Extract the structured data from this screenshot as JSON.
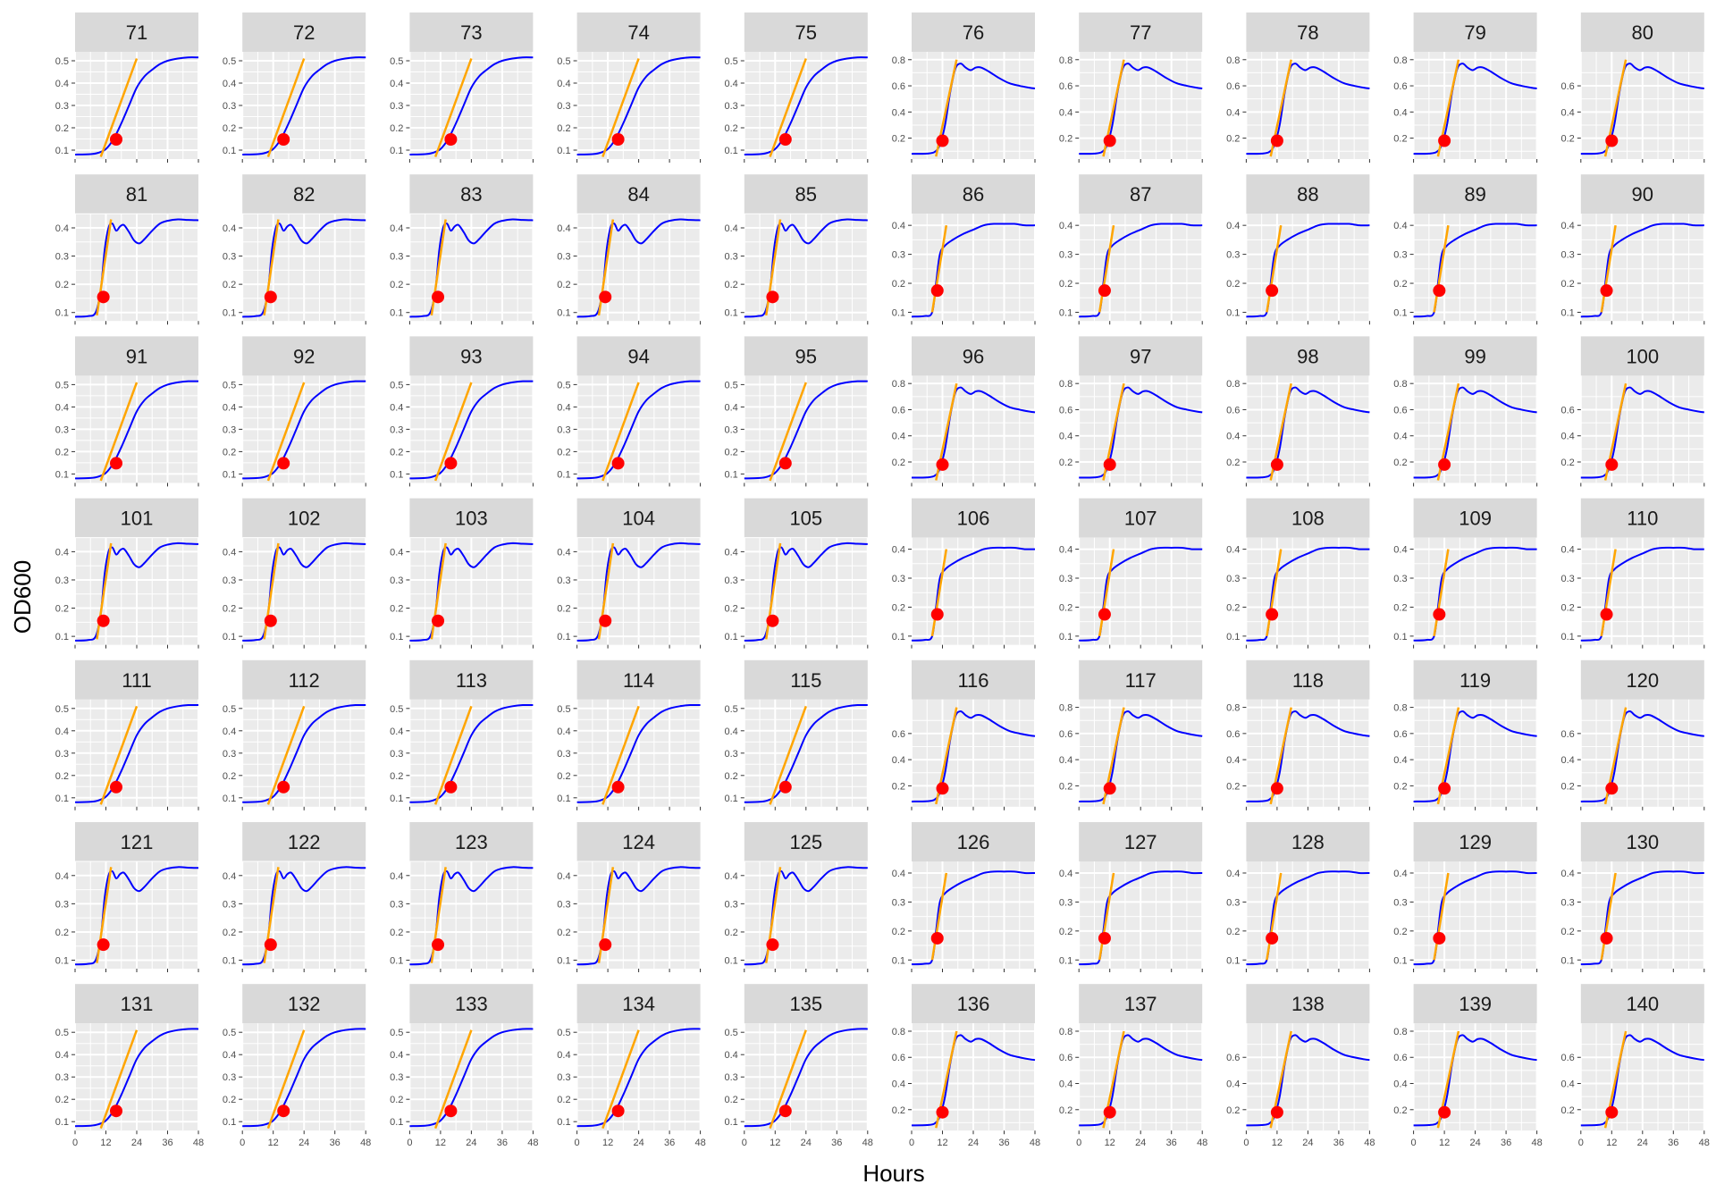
{
  "chart_data": {
    "type": "line",
    "layout": "facet-grid",
    "rows": 7,
    "cols": 10,
    "xlabel": "Hours",
    "ylabel": "OD600",
    "x_ticks": [
      0,
      12,
      24,
      36,
      48
    ],
    "xlim": [
      0,
      48
    ],
    "colors": {
      "curve": "#0000ff",
      "tangent": "#ffa500",
      "point": "#ff0000",
      "panel_bg": "#ebebeb",
      "strip_bg": "#d9d9d9",
      "grid": "#ffffff"
    },
    "group_types": {
      "S": {
        "ylim": [
          0.06,
          0.54
        ],
        "y_ticks": [
          0.1,
          0.2,
          0.3,
          0.4,
          0.5
        ]
      },
      "P": {
        "ylim": [
          0.04,
          0.86
        ],
        "y_ticks": [
          0.2,
          0.4,
          0.6,
          0.8
        ]
      },
      "W": {
        "ylim": [
          0.07,
          0.45
        ],
        "y_ticks": [
          0.1,
          0.2,
          0.3,
          0.4
        ]
      },
      "L": {
        "ylim": [
          0.07,
          0.44
        ],
        "y_ticks": [
          0.1,
          0.2,
          0.3,
          0.4
        ]
      }
    },
    "shapes": {
      "S": {
        "points": [
          [
            0,
            0.08
          ],
          [
            6,
            0.082
          ],
          [
            9,
            0.088
          ],
          [
            12,
            0.105
          ],
          [
            15,
            0.15
          ],
          [
            18,
            0.22
          ],
          [
            21,
            0.3
          ],
          [
            24,
            0.38
          ],
          [
            27,
            0.43
          ],
          [
            30,
            0.46
          ],
          [
            33,
            0.485
          ],
          [
            36,
            0.5
          ],
          [
            40,
            0.51
          ],
          [
            44,
            0.515
          ],
          [
            48,
            0.515
          ]
        ],
        "tangent": [
          [
            10,
            0.07
          ],
          [
            24,
            0.51
          ]
        ],
        "marker": [
          16,
          0.148
        ]
      },
      "P": {
        "points": [
          [
            0,
            0.08
          ],
          [
            6,
            0.082
          ],
          [
            9,
            0.095
          ],
          [
            11,
            0.15
          ],
          [
            13,
            0.3
          ],
          [
            15,
            0.55
          ],
          [
            17,
            0.73
          ],
          [
            19,
            0.77
          ],
          [
            21,
            0.74
          ],
          [
            23,
            0.72
          ],
          [
            25,
            0.74
          ],
          [
            27,
            0.74
          ],
          [
            30,
            0.71
          ],
          [
            34,
            0.66
          ],
          [
            38,
            0.62
          ],
          [
            42,
            0.6
          ],
          [
            46,
            0.585
          ],
          [
            48,
            0.58
          ]
        ],
        "tangent": [
          [
            9.5,
            0.06
          ],
          [
            17.5,
            0.8
          ]
        ],
        "marker": [
          12,
          0.18
        ]
      },
      "W": {
        "points": [
          [
            0,
            0.085
          ],
          [
            5,
            0.087
          ],
          [
            8,
            0.1
          ],
          [
            10,
            0.18
          ],
          [
            11.5,
            0.32
          ],
          [
            13,
            0.4
          ],
          [
            14.5,
            0.415
          ],
          [
            16,
            0.39
          ],
          [
            17.5,
            0.405
          ],
          [
            19,
            0.41
          ],
          [
            21,
            0.385
          ],
          [
            23,
            0.355
          ],
          [
            25,
            0.345
          ],
          [
            27,
            0.36
          ],
          [
            30,
            0.39
          ],
          [
            33,
            0.415
          ],
          [
            36,
            0.425
          ],
          [
            40,
            0.43
          ],
          [
            44,
            0.428
          ],
          [
            48,
            0.427
          ]
        ],
        "tangent": [
          [
            8.5,
            0.09
          ],
          [
            14,
            0.43
          ]
        ],
        "marker": [
          11,
          0.155
        ]
      },
      "L": {
        "points": [
          [
            0,
            0.085
          ],
          [
            5,
            0.087
          ],
          [
            8,
            0.1
          ],
          [
            9.5,
            0.2
          ],
          [
            11,
            0.3
          ],
          [
            13,
            0.33
          ],
          [
            16,
            0.35
          ],
          [
            20,
            0.37
          ],
          [
            24,
            0.385
          ],
          [
            28,
            0.4
          ],
          [
            32,
            0.405
          ],
          [
            36,
            0.405
          ],
          [
            40,
            0.405
          ],
          [
            44,
            0.4
          ],
          [
            48,
            0.4
          ]
        ],
        "tangent": [
          [
            8,
            0.1
          ],
          [
            13.5,
            0.4
          ]
        ],
        "marker": [
          10,
          0.175
        ]
      }
    },
    "row_patterns": [
      "S",
      "W",
      "S",
      "W",
      "S",
      "W",
      "S"
    ],
    "col_patterns_right": [
      "P",
      "L",
      "P",
      "L",
      "P",
      "L",
      "P"
    ],
    "facets": [
      {
        "label": "71",
        "type": "S"
      },
      {
        "label": "72",
        "type": "S"
      },
      {
        "label": "73",
        "type": "S"
      },
      {
        "label": "74",
        "type": "S"
      },
      {
        "label": "75",
        "type": "S"
      },
      {
        "label": "76",
        "type": "P"
      },
      {
        "label": "77",
        "type": "P"
      },
      {
        "label": "78",
        "type": "P"
      },
      {
        "label": "79",
        "type": "P"
      },
      {
        "label": "80",
        "type": "P",
        "y_ticks": [
          0.2,
          0.4,
          0.6
        ]
      },
      {
        "label": "81",
        "type": "W"
      },
      {
        "label": "82",
        "type": "W"
      },
      {
        "label": "83",
        "type": "W"
      },
      {
        "label": "84",
        "type": "W"
      },
      {
        "label": "85",
        "type": "W"
      },
      {
        "label": "86",
        "type": "L"
      },
      {
        "label": "87",
        "type": "L"
      },
      {
        "label": "88",
        "type": "L"
      },
      {
        "label": "89",
        "type": "L"
      },
      {
        "label": "90",
        "type": "L"
      },
      {
        "label": "91",
        "type": "S"
      },
      {
        "label": "92",
        "type": "S"
      },
      {
        "label": "93",
        "type": "S"
      },
      {
        "label": "94",
        "type": "S"
      },
      {
        "label": "95",
        "type": "S"
      },
      {
        "label": "96",
        "type": "P"
      },
      {
        "label": "97",
        "type": "P"
      },
      {
        "label": "98",
        "type": "P"
      },
      {
        "label": "99",
        "type": "P"
      },
      {
        "label": "100",
        "type": "P",
        "y_ticks": [
          0.2,
          0.4,
          0.6
        ]
      },
      {
        "label": "101",
        "type": "W"
      },
      {
        "label": "102",
        "type": "W"
      },
      {
        "label": "103",
        "type": "W"
      },
      {
        "label": "104",
        "type": "W"
      },
      {
        "label": "105",
        "type": "W"
      },
      {
        "label": "106",
        "type": "L"
      },
      {
        "label": "107",
        "type": "L"
      },
      {
        "label": "108",
        "type": "L"
      },
      {
        "label": "109",
        "type": "L"
      },
      {
        "label": "110",
        "type": "L"
      },
      {
        "label": "111",
        "type": "S"
      },
      {
        "label": "112",
        "type": "S"
      },
      {
        "label": "113",
        "type": "S"
      },
      {
        "label": "114",
        "type": "S"
      },
      {
        "label": "115",
        "type": "S"
      },
      {
        "label": "116",
        "type": "P",
        "y_ticks": [
          0.2,
          0.4,
          0.6
        ]
      },
      {
        "label": "117",
        "type": "P"
      },
      {
        "label": "118",
        "type": "P"
      },
      {
        "label": "119",
        "type": "P"
      },
      {
        "label": "120",
        "type": "P",
        "y_ticks": [
          0.2,
          0.4,
          0.6
        ]
      },
      {
        "label": "121",
        "type": "W"
      },
      {
        "label": "122",
        "type": "W"
      },
      {
        "label": "123",
        "type": "W"
      },
      {
        "label": "124",
        "type": "W"
      },
      {
        "label": "125",
        "type": "W"
      },
      {
        "label": "126",
        "type": "L"
      },
      {
        "label": "127",
        "type": "L"
      },
      {
        "label": "128",
        "type": "L"
      },
      {
        "label": "129",
        "type": "L"
      },
      {
        "label": "130",
        "type": "L"
      },
      {
        "label": "131",
        "type": "S"
      },
      {
        "label": "132",
        "type": "S"
      },
      {
        "label": "133",
        "type": "S"
      },
      {
        "label": "134",
        "type": "S"
      },
      {
        "label": "135",
        "type": "S"
      },
      {
        "label": "136",
        "type": "P"
      },
      {
        "label": "137",
        "type": "P"
      },
      {
        "label": "138",
        "type": "P",
        "y_ticks": [
          0.2,
          0.4,
          0.6
        ]
      },
      {
        "label": "139",
        "type": "P"
      },
      {
        "label": "140",
        "type": "P",
        "y_ticks": [
          0.2,
          0.4,
          0.6
        ]
      }
    ]
  }
}
